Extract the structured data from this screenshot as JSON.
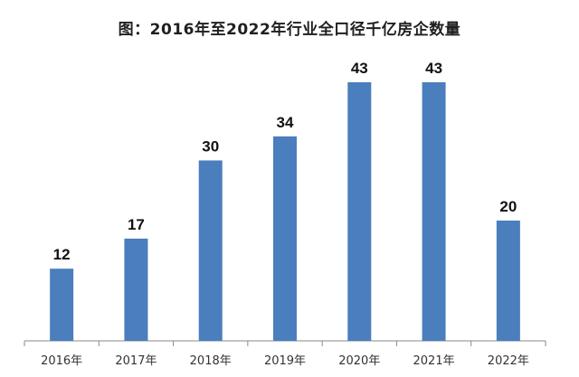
{
  "chart_data": {
    "type": "bar",
    "title": "图：2016年至2022年行业全口径千亿房企数量",
    "categories": [
      "2016年",
      "2017年",
      "2018年",
      "2019年",
      "2020年",
      "2021年",
      "2022年"
    ],
    "values": [
      12,
      17,
      30,
      34,
      43,
      43,
      20
    ],
    "bar_color": "#4a7ebd",
    "axis_color": "#8a8a8a",
    "data_labels": true,
    "grid": false,
    "legend": "none",
    "xlabel": "",
    "ylabel": "",
    "ylim": [
      0,
      45
    ]
  }
}
